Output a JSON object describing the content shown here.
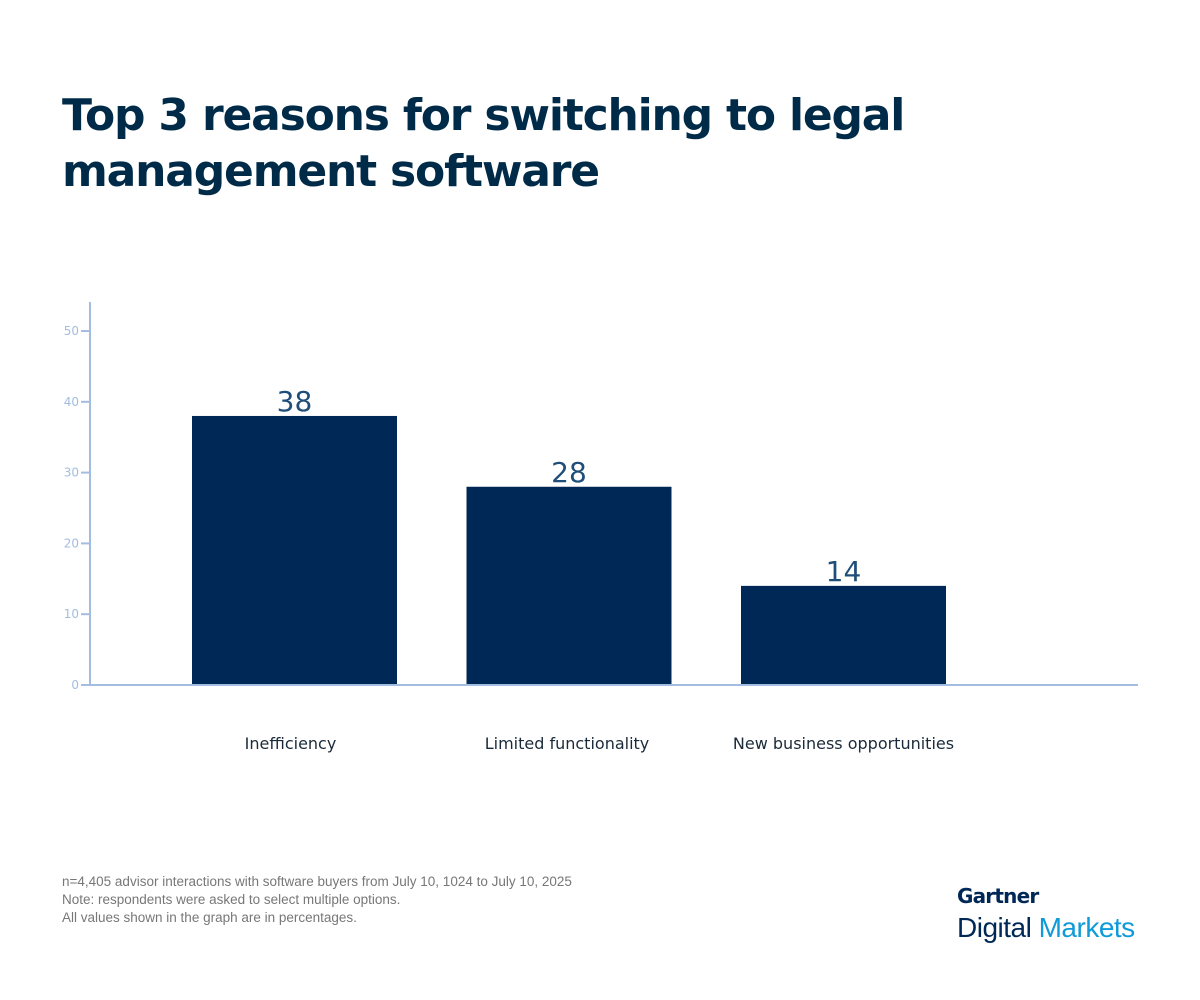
{
  "chart_data": {
    "type": "bar",
    "title": "Top 3 reasons for switching to legal management software",
    "categories": [
      "Inefficiency",
      "Limited functionality",
      "New business opportunities"
    ],
    "values": [
      38,
      28,
      14
    ],
    "ylim": [
      0,
      50
    ],
    "yticks": [
      0,
      10,
      20,
      30,
      40,
      50
    ],
    "xlabel": "",
    "ylabel": "",
    "grid": false,
    "bar_color": "#002856",
    "label_color": "#1f4e79",
    "axis_color": "#a3bde0"
  },
  "notes": [
    "n=4,405 advisor interactions with software buyers from July 10, 1024 to July 10, 2025",
    "Note: respondents were asked to select multiple options.",
    "All values shown in the graph are in percentages."
  ],
  "logo": {
    "line1": "Gartner",
    "word1": "Digital",
    "word2": "Markets"
  }
}
